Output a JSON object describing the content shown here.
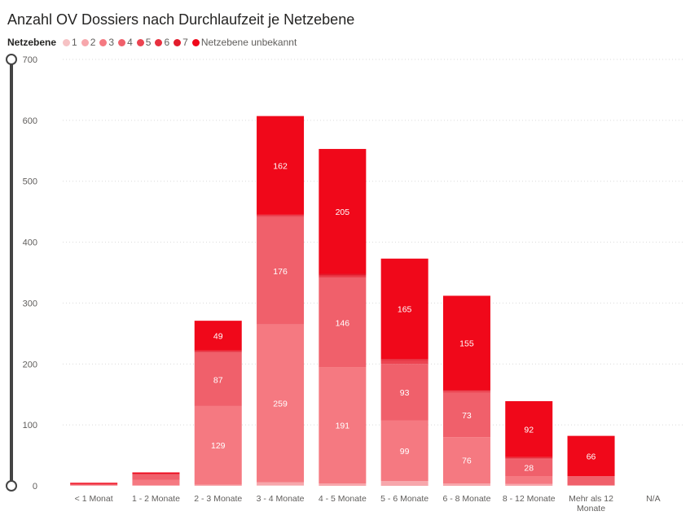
{
  "chart_data": {
    "type": "bar",
    "stacked": true,
    "title": "Anzahl OV Dossiers nach Durchlaufzeit je Netzebene",
    "legend_title": "Netzebene",
    "legend_position": "top-left",
    "grid": true,
    "xlabel": "",
    "ylabel": "",
    "ylim": [
      0,
      700
    ],
    "yticks": [
      0,
      100,
      200,
      300,
      400,
      500,
      600,
      700
    ],
    "categories": [
      "< 1 Monat",
      "1 - 2 Monate",
      "2 - 3 Monate",
      "3 - 4 Monate",
      "4 - 5 Monate",
      "5 - 6 Monate",
      "6 - 8 Monate",
      "8 - 12 Monate",
      "Mehr als 12 Monate",
      "N/A"
    ],
    "series": [
      {
        "name": "1",
        "color": "#f6c2c4",
        "values": [
          0,
          0,
          0,
          1,
          0,
          0,
          0,
          0,
          0,
          0
        ]
      },
      {
        "name": "2",
        "color": "#f7a7ac",
        "values": [
          1,
          1,
          2,
          5,
          4,
          8,
          4,
          3,
          1,
          0
        ]
      },
      {
        "name": "3",
        "color": "#f57981",
        "values": [
          0,
          9,
          129,
          259,
          191,
          99,
          76,
          13,
          0,
          0
        ]
      },
      {
        "name": "4",
        "color": "#f0606b",
        "values": [
          2,
          9,
          87,
          176,
          146,
          93,
          73,
          28,
          15,
          0
        ]
      },
      {
        "name": "5",
        "color": "#ec4451",
        "values": [
          0,
          0,
          2,
          2,
          3,
          5,
          2,
          1,
          0,
          0
        ]
      },
      {
        "name": "6",
        "color": "#e7303f",
        "values": [
          0,
          0,
          1,
          1,
          2,
          1,
          1,
          1,
          0,
          0
        ]
      },
      {
        "name": "7",
        "color": "#e21c2c",
        "values": [
          0,
          1,
          1,
          1,
          2,
          2,
          1,
          1,
          0,
          0
        ]
      },
      {
        "name": "Netzebene unbekannt",
        "color": "#f0081a",
        "values": [
          2,
          2,
          49,
          162,
          205,
          165,
          155,
          92,
          66,
          0
        ]
      }
    ],
    "data_labels": [
      {
        "category": 2,
        "series": 2,
        "text": "129"
      },
      {
        "category": 2,
        "series": 3,
        "text": "87"
      },
      {
        "category": 2,
        "series": 7,
        "text": "49"
      },
      {
        "category": 3,
        "series": 2,
        "text": "259"
      },
      {
        "category": 3,
        "series": 3,
        "text": "176"
      },
      {
        "category": 3,
        "series": 7,
        "text": "162"
      },
      {
        "category": 4,
        "series": 2,
        "text": "191"
      },
      {
        "category": 4,
        "series": 3,
        "text": "146"
      },
      {
        "category": 4,
        "series": 7,
        "text": "205"
      },
      {
        "category": 5,
        "series": 2,
        "text": "99"
      },
      {
        "category": 5,
        "series": 3,
        "text": "93"
      },
      {
        "category": 5,
        "series": 7,
        "text": "165"
      },
      {
        "category": 6,
        "series": 2,
        "text": "76"
      },
      {
        "category": 6,
        "series": 3,
        "text": "73"
      },
      {
        "category": 6,
        "series": 7,
        "text": "155"
      },
      {
        "category": 7,
        "series": 3,
        "text": "28"
      },
      {
        "category": 7,
        "series": 7,
        "text": "92"
      },
      {
        "category": 8,
        "series": 7,
        "text": "66"
      }
    ]
  }
}
